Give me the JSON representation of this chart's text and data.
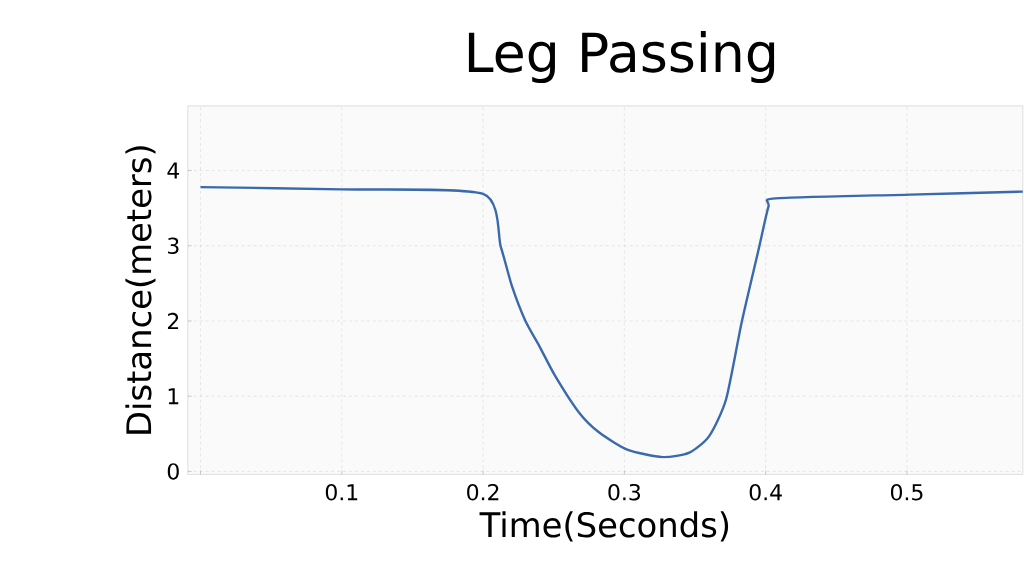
{
  "chart_data": {
    "type": "line",
    "title": "Leg Passing",
    "xlabel": "Time(Seconds)",
    "ylabel": "Distance(meters)",
    "xlim": [
      -0.009,
      0.582
    ],
    "ylim": [
      -0.04,
      4.86
    ],
    "xticks": [
      {
        "value": 0,
        "label": null
      },
      0.1,
      0.2,
      0.3,
      0.4,
      0.5
    ],
    "yticks": [
      0,
      1,
      2,
      3,
      4
    ],
    "grid": true,
    "legend": false,
    "marker": "none",
    "line_style": "solid",
    "series": [
      {
        "color": "#3a6aab",
        "x": [
          0,
          0.1,
          0.2,
          0.2125,
          0.2205,
          0.23,
          0.24,
          0.251,
          0.268,
          0.282,
          0.302,
          0.327,
          0.346,
          0.36,
          0.372,
          0.383,
          0.395,
          0.402,
          0.407,
          0.502,
          0.582
        ],
        "values": [
          3.78,
          3.75,
          3.69,
          2.99,
          2.46,
          2.0,
          1.66,
          1.27,
          0.78,
          0.52,
          0.29,
          0.19,
          0.25,
          0.47,
          0.96,
          1.98,
          2.95,
          3.52,
          3.63,
          3.68,
          3.72
        ]
      }
    ]
  }
}
